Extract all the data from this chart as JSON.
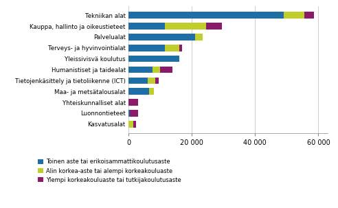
{
  "categories": [
    "Kasvatusalat",
    "Luonnontieteet",
    "Yhteiskunnalliset alat",
    "Maa- ja metsätalousalat",
    "Tietojenkäsittely ja tietoliikenne (ICT)",
    "Humanistiset ja taidealat",
    "Yleissivisvä koulutus",
    "Terveys- ja hyvinvointialat",
    "Palvelualat",
    "Kauppa, hallinto ja oikeustieteet",
    "Tekniikan alat"
  ],
  "blue_values": [
    0,
    500,
    0,
    6500,
    6000,
    7500,
    16000,
    11500,
    21000,
    11500,
    49000
  ],
  "yellow_values": [
    1500,
    0,
    0,
    1500,
    2500,
    2500,
    0,
    4500,
    2500,
    13000,
    6500
  ],
  "purple_values": [
    1000,
    2500,
    3000,
    0,
    1000,
    4000,
    0,
    1000,
    0,
    5000,
    3000
  ],
  "blue_color": "#1F6EA6",
  "yellow_color": "#BFCE2B",
  "purple_color": "#8B1A6B",
  "legend_labels": [
    "Toinen aste tai erikoisammattikoulutusaste",
    "Alin korkea-aste tai alempi korkeakouluaste",
    "Ylempi korkeakouluaste tai tutkijakoulutusaste"
  ],
  "xlim": [
    0,
    63000
  ],
  "xticks": [
    0,
    20000,
    40000,
    60000
  ],
  "xticklabels": [
    "0",
    "20 000",
    "40 000",
    "60 000"
  ],
  "background_color": "#ffffff",
  "bar_height": 0.6,
  "figwidth": 4.92,
  "figheight": 3.03,
  "dpi": 100
}
